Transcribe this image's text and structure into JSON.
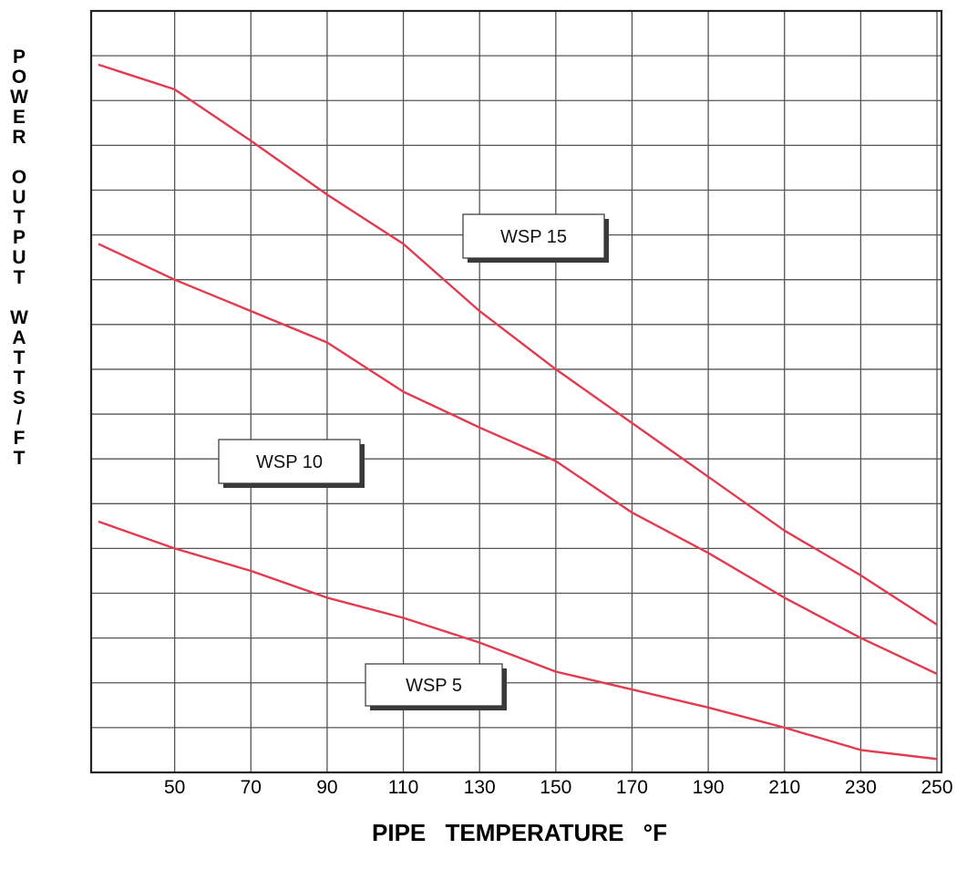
{
  "chart_data": {
    "type": "line",
    "title": "",
    "xlabel": "PIPE   TEMPERATURE   °F",
    "ylabel": "P\nO\nW\nE\nR\n\nO\nU\nT\nP\nU\nT\n\nW\nA\nT\nT\nS\n/\nF\nT",
    "x_ticks": [
      50,
      70,
      90,
      110,
      130,
      150,
      170,
      190,
      210,
      230,
      250
    ],
    "xlim": [
      30,
      250
    ],
    "ylim": [
      0,
      17
    ],
    "y_ticks_labeled": false,
    "grid": true,
    "line_color": "#e23a4e",
    "series": [
      {
        "name": "WSP 15",
        "x": [
          30,
          50,
          70,
          90,
          110,
          130,
          150,
          170,
          190,
          210,
          230,
          250
        ],
        "y": [
          15.8,
          15.25,
          14.1,
          12.9,
          11.8,
          10.3,
          9.0,
          7.8,
          6.6,
          5.4,
          4.4,
          3.3
        ]
      },
      {
        "name": "WSP 10",
        "x": [
          30,
          50,
          70,
          90,
          110,
          130,
          150,
          170,
          190,
          210,
          230,
          250
        ],
        "y": [
          11.8,
          11.0,
          10.3,
          9.6,
          8.5,
          7.7,
          6.95,
          5.8,
          4.9,
          3.9,
          3.0,
          2.2
        ]
      },
      {
        "name": "WSP 5",
        "x": [
          30,
          50,
          70,
          90,
          110,
          130,
          150,
          170,
          190,
          210,
          230,
          250
        ],
        "y": [
          5.6,
          5.0,
          4.5,
          3.9,
          3.45,
          2.9,
          2.25,
          1.85,
          1.45,
          1.0,
          0.5,
          0.3
        ]
      }
    ],
    "annotations": [
      {
        "text": "WSP 15",
        "series": "WSP 15"
      },
      {
        "text": "WSP 10",
        "series": "WSP 10"
      },
      {
        "text": "WSP 5",
        "series": "WSP 5"
      }
    ]
  }
}
